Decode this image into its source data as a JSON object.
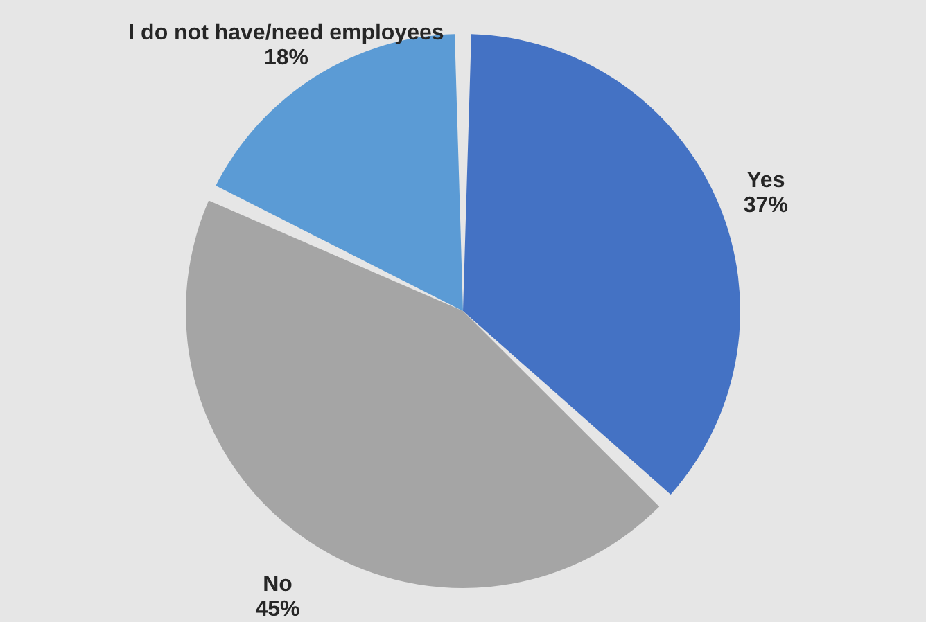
{
  "chart_data": {
    "type": "pie",
    "categories": [
      "Yes",
      "No",
      "I do not have/need employees"
    ],
    "values": [
      37,
      45,
      18
    ],
    "colors": [
      "#4472c4",
      "#a5a5a5",
      "#5b9bd5"
    ],
    "value_labels": [
      "37%",
      "45%",
      "18%"
    ]
  }
}
